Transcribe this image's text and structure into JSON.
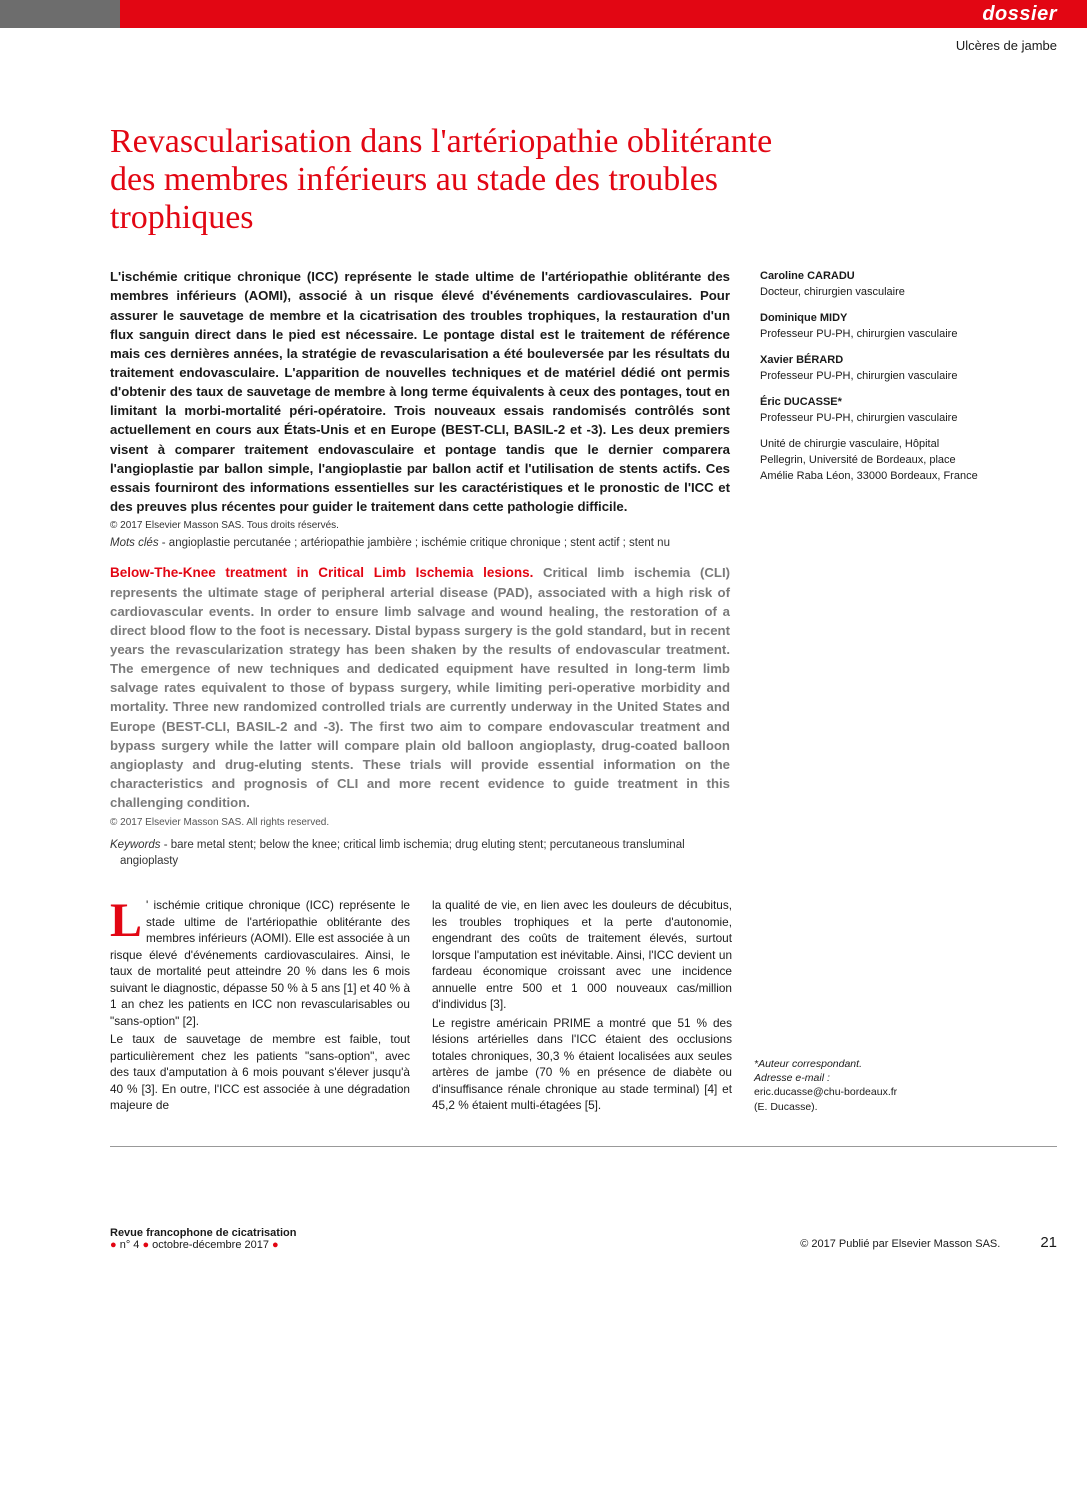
{
  "header": {
    "category": "dossier",
    "subcategory": "Ulcères de jambe"
  },
  "title": "Revascularisation dans l'artériopathie oblitérante des membres inférieurs au stade des troubles trophiques",
  "abstract_fr": "L'ischémie critique chronique (ICC) représente le stade ultime de l'artériopathie oblitérante des membres inférieurs (AOMI), associé à un risque élevé d'événements cardiovasculaires. Pour assurer le sauvetage de membre et la cicatrisation des troubles trophiques, la restauration d'un flux sanguin direct dans le pied est nécessaire. Le pontage distal est le traitement de référence mais ces dernières années, la stratégie de revascularisation a été bouleversée par les résultats du traitement endovasculaire. L'apparition de nouvelles techniques et de matériel dédié ont permis d'obtenir des taux de sauvetage de membre à long terme équivalents à ceux des pontages, tout en limitant la morbi-mortalité péri-opératoire. Trois nouveaux essais randomisés contrôlés sont actuellement en cours aux États-Unis et en Europe (BEST-CLI, BASIL-2 et -3). Les deux premiers visent à comparer traitement endovasculaire et pontage tandis que le dernier comparera l'angioplastie par ballon simple, l'angioplastie par ballon actif et l'utilisation de stents actifs. Ces essais fourniront des informations essentielles sur les caractéristiques et le pronostic de l'ICC et des preuves plus récentes pour guider le traitement dans cette pathologie difficile.",
  "copyright_fr": "© 2017 Elsevier Masson SAS. Tous droits réservés.",
  "keywords_fr_label": "Mots clés",
  "keywords_fr": " - angioplastie percutanée ; artériopathie jambière ; ischémie critique chronique ; stent actif ; stent nu",
  "abstract_en_title": "Below-The-Knee treatment in Critical Limb Ischemia lesions.",
  "abstract_en": " Critical limb ischemia (CLI) represents the ultimate stage of peripheral arterial disease (PAD), associated with a high risk of cardiovascular events. In order to ensure limb salvage and wound healing, the restoration of a direct blood flow to the foot is necessary. Distal bypass surgery is the gold standard, but in recent years the revascularization strategy has been shaken by the results of endovascular treatment. The emergence of new techniques and dedicated equipment have resulted in long-term limb salvage rates equivalent to those of bypass surgery, while limiting peri-operative morbidity and mortality. Three new randomized controlled trials are currently underway in the United States and Europe (BEST-CLI, BASIL-2 and -3). The first two aim to compare endovascular treatment and bypass surgery while the latter will compare plain old balloon angioplasty, drug-coated balloon angioplasty and drug-eluting stents. These trials will provide essential information on the characteristics and prognosis of CLI and more recent evidence to guide treatment in this challenging condition.",
  "copyright_en": "© 2017 Elsevier Masson SAS. All rights reserved.",
  "keywords_en_label": "Keywords",
  "keywords_en": " - bare metal stent; below the knee; critical limb ischemia; drug eluting stent; percutaneous transluminal angioplasty",
  "authors": [
    {
      "name": "Caroline CARADU",
      "role": "Docteur,\nchirurgien vasculaire"
    },
    {
      "name": "Dominique MIDY",
      "role": "Professeur PU-PH,\nchirurgien vasculaire"
    },
    {
      "name": "Xavier BÉRARD",
      "role": "Professeur PU-PH,\nchirurgien vasculaire"
    },
    {
      "name": "Éric DUCASSE*",
      "role": "Professeur PU-PH,\nchirurgien vasculaire"
    }
  ],
  "affiliation": "Unité de chirurgie vasculaire, Hôpital Pellegrin, Université de Bordeaux, place Amélie Raba Léon, 33000 Bordeaux, France",
  "body": {
    "dropcap": "L",
    "col1_first": "'  ischémie critique chronique (ICC) représente le stade ultime de l'artériopathie oblitérante des membres inférieurs (AOMI). Elle est associée à un risque élevé d'événements cardiovasculaires. Ainsi, le taux de mortalité peut atteindre 20 % dans les 6 mois suivant le diagnostic, dépasse 50 % à 5 ans [1] et 40 % à 1 an chez les patients en ICC non revascularisables ou \"sans-option\" [2].",
    "col1_second": "Le taux de sauvetage de membre est faible, tout particulièrement chez les patients \"sans-option\", avec des taux d'amputation à 6 mois pouvant s'élever jusqu'à 40 % [3]. En outre, l'ICC est associée à une dégradation majeure de",
    "col2_first": "la qualité de vie, en lien avec les douleurs de décubitus, les troubles trophiques et la perte d'autonomie, engendrant des coûts de traitement élevés, surtout lorsque l'amputation est inévitable. Ainsi, l'ICC devient un fardeau économique croissant avec une incidence annuelle entre 500 et 1 000 nouveaux cas/million d'individus [3].",
    "col2_second": "Le registre américain PRIME a montré que 51 % des lésions artérielles dans l'ICC étaient des occlusions totales chroniques, 30,3 % étaient localisées aux seules artères de jambe (70 % en présence de diabète ou d'insuffisance rénale chronique au stade terminal) [4] et 45,2 % étaient multi-étagées [5]."
  },
  "correspondent": {
    "label": "*Auteur correspondant.",
    "email_label": "Adresse e-mail :",
    "email": "eric.ducasse@chu-bordeaux.fr",
    "person": "(E. Ducasse)."
  },
  "footer": {
    "journal": "Revue francophone de cicatrisation",
    "issue_prefix1": "●",
    "issue_num": " n° 4 ",
    "issue_prefix2": "●",
    "issue_date": " octobre-décembre 2017 ",
    "issue_prefix3": "●",
    "publisher": "© 2017 Publié par Elsevier Masson SAS.",
    "page": "21"
  },
  "colors": {
    "accent": "#e20613",
    "gray_text": "#7a7a7a"
  }
}
